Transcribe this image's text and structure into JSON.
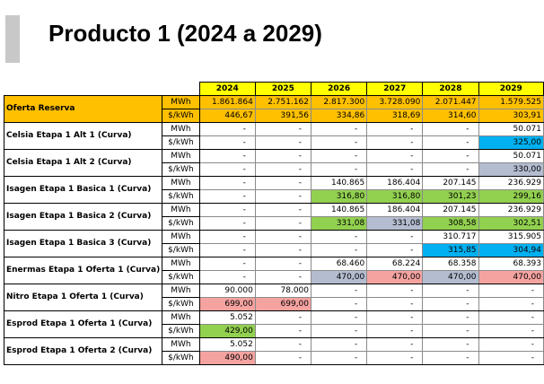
{
  "title": "Producto 1 (2024 a 2029)",
  "colors": {
    "header_year": "#ffff00",
    "oferta_row": "#ffc000",
    "blue": "#00b0f0",
    "gray": "#b4bcd0",
    "green": "#92d050",
    "pink": "#f4a3a0"
  },
  "years": [
    "2024",
    "2025",
    "2026",
    "2027",
    "2028",
    "2029"
  ],
  "units": {
    "energy": "MWh",
    "price": "$/kWh"
  },
  "rows": [
    {
      "name": "Oferta Reserva",
      "mwh": [
        "1.861.864",
        "2.751.162",
        "2.817.300",
        "3.728.090",
        "2.071.447",
        "1.579.525"
      ],
      "price": [
        "446,67",
        "391,56",
        "334,86",
        "318,69",
        "314,60",
        "303,91"
      ],
      "price_colors": [
        "",
        "",
        "",
        "",
        "",
        ""
      ]
    },
    {
      "name": "Celsia Etapa 1 Alt 1 (Curva)",
      "mwh": [
        "-",
        "-",
        "-",
        "-",
        "-",
        "50.071"
      ],
      "price": [
        "-",
        "-",
        "-",
        "-",
        "-",
        "325,00"
      ],
      "price_colors": [
        "",
        "",
        "",
        "",
        "",
        "blue"
      ]
    },
    {
      "name": "Celsia Etapa 1 Alt 2 (Curva)",
      "mwh": [
        "-",
        "-",
        "-",
        "-",
        "-",
        "50.071"
      ],
      "price": [
        "-",
        "-",
        "-",
        "-",
        "-",
        "330,00"
      ],
      "price_colors": [
        "",
        "",
        "",
        "",
        "",
        "gray"
      ]
    },
    {
      "name": "Isagen Etapa 1 Basica 1 (Curva)",
      "mwh": [
        "-",
        "-",
        "140.865",
        "186.404",
        "207.145",
        "236.929"
      ],
      "price": [
        "-",
        "-",
        "316,80",
        "316,80",
        "301,23",
        "299,16"
      ],
      "price_colors": [
        "",
        "",
        "green",
        "green",
        "green",
        "green"
      ]
    },
    {
      "name": "Isagen Etapa 1 Basica 2 (Curva)",
      "mwh": [
        "-",
        "-",
        "140.865",
        "186.404",
        "207.145",
        "236.929"
      ],
      "price": [
        "-",
        "-",
        "331,08",
        "331,08",
        "308,58",
        "302,51"
      ],
      "price_colors": [
        "",
        "",
        "green",
        "gray",
        "green",
        "green"
      ]
    },
    {
      "name": "Isagen Etapa 1 Basica 3 (Curva)",
      "mwh": [
        "-",
        "-",
        "-",
        "-",
        "310.717",
        "315.905"
      ],
      "price": [
        "-",
        "-",
        "-",
        "-",
        "315,85",
        "304,94"
      ],
      "price_colors": [
        "",
        "",
        "",
        "",
        "blue",
        "blue"
      ]
    },
    {
      "name": "Enermas Etapa 1 Oferta 1 (Curva)",
      "mwh": [
        "-",
        "-",
        "68.460",
        "68.224",
        "68.358",
        "68.393"
      ],
      "price": [
        "-",
        "-",
        "470,00",
        "470,00",
        "470,00",
        "470,00"
      ],
      "price_colors": [
        "",
        "",
        "gray",
        "pink",
        "gray",
        "pink"
      ]
    },
    {
      "name": "Nitro Etapa 1 Oferta 1 (Curva)",
      "mwh": [
        "90.000",
        "78.000",
        "-",
        "-",
        "-",
        "-"
      ],
      "price": [
        "699,00",
        "699,00",
        "-",
        "-",
        "-",
        "-"
      ],
      "price_colors": [
        "pink",
        "pink",
        "",
        "",
        "",
        ""
      ]
    },
    {
      "name": "Esprod Etapa 1 Oferta 1 (Curva)",
      "mwh": [
        "5.052",
        "-",
        "-",
        "-",
        "-",
        "-"
      ],
      "price": [
        "429,00",
        "-",
        "-",
        "-",
        "-",
        "-"
      ],
      "price_colors": [
        "green",
        "",
        "",
        "",
        "",
        ""
      ]
    },
    {
      "name": "Esprod Etapa 1 Oferta 2 (Curva)",
      "mwh": [
        "5.052",
        "-",
        "-",
        "-",
        "-",
        "-"
      ],
      "price": [
        "490,00",
        "-",
        "-",
        "-",
        "-",
        "-"
      ],
      "price_colors": [
        "pink",
        "",
        "",
        "",
        "",
        ""
      ]
    }
  ]
}
